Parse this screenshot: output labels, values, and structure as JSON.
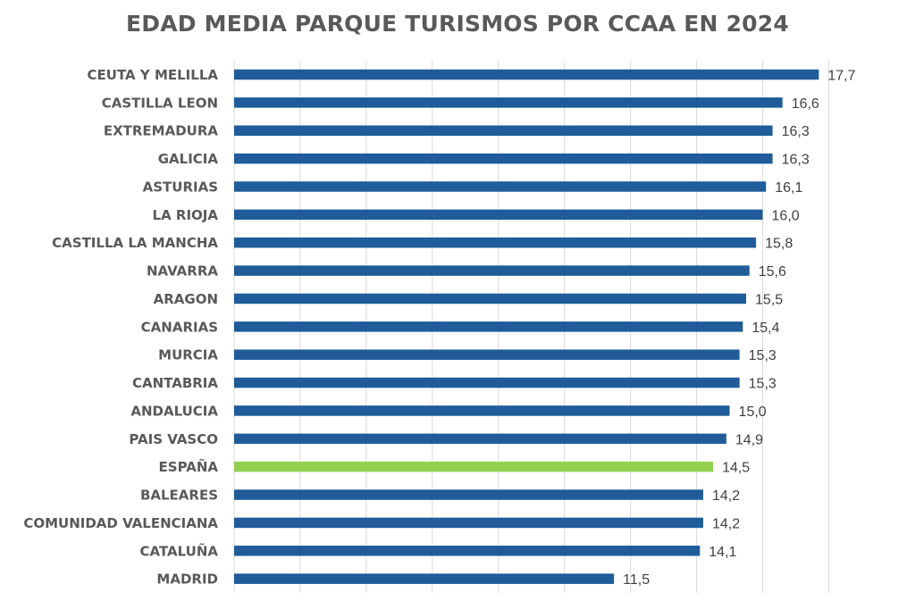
{
  "chart_data": {
    "type": "bar",
    "orientation": "horizontal",
    "title": "EDAD MEDIA PARQUE TURISMOS POR CCAA EN 2024",
    "xlabel": "",
    "ylabel": "",
    "categories": [
      "CEUTA Y MELILLA",
      "CASTILLA LEON",
      "EXTREMADURA",
      "GALICIA",
      "ASTURIAS",
      "LA RIOJA",
      "CASTILLA LA MANCHA",
      "NAVARRA",
      "ARAGON",
      "CANARIAS",
      "MURCIA",
      "CANTABRIA",
      "ANDALUCIA",
      "PAIS VASCO",
      "ESPAÑA",
      "BALEARES",
      "COMUNIDAD VALENCIANA",
      "CATALUÑA",
      "MADRID"
    ],
    "values": [
      17.7,
      16.6,
      16.3,
      16.3,
      16.1,
      16.0,
      15.8,
      15.6,
      15.5,
      15.4,
      15.3,
      15.3,
      15.0,
      14.9,
      14.5,
      14.2,
      14.2,
      14.1,
      11.5
    ],
    "value_labels": [
      "17,7",
      "16,6",
      "16,3",
      "16,3",
      "16,1",
      "16,0",
      "15,8",
      "15,6",
      "15,5",
      "15,4",
      "15,3",
      "15,3",
      "15,0",
      "14,9",
      "14,5",
      "14,2",
      "14,2",
      "14,1",
      "11,5"
    ],
    "xlim": [
      0,
      18
    ],
    "grid": true,
    "colors": {
      "default_bar": "#1F5C99",
      "highlight_bar": "#92D050",
      "gridline": "#D9D9D9",
      "label_text": "#595959",
      "value_text": "#404040"
    },
    "highlight_category": "ESPAÑA"
  }
}
